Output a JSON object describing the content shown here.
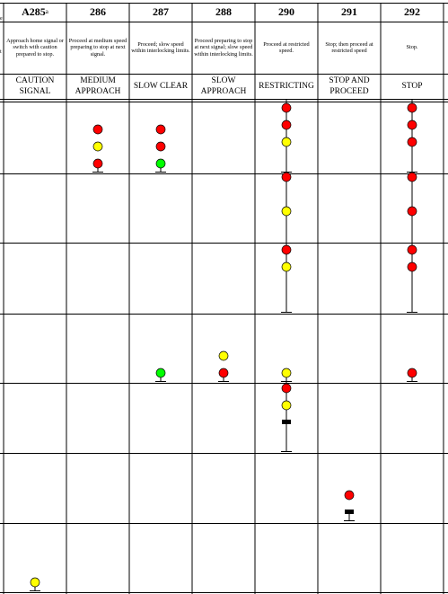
{
  "edge_fragments": [
    "e",
    "t"
  ],
  "header": {
    "rule_sup": "a",
    "columns": [
      {
        "rule": "A285",
        "indication": "Approach home signal or switch with caution prepared to stop.",
        "name": "CAUTION SIGNAL"
      },
      {
        "rule": "286",
        "indication": "Proceed at medium speed preparing to stop at next signal.",
        "name": "MEDIUM APPROACH"
      },
      {
        "rule": "287",
        "indication": "Proceed; slow speed within interlocking limits.",
        "name": "SLOW CLEAR"
      },
      {
        "rule": "288",
        "indication": "Proceed preparing to stop at next signal; slow speed within interlocking limits.",
        "name": "SLOW APPROACH"
      },
      {
        "rule": "290",
        "indication": "Proceed at restricted speed.",
        "name": "RESTRICTING"
      },
      {
        "rule": "291",
        "indication": "Stop; then proceed at restricted speed",
        "name": "STOP AND PROCEED"
      },
      {
        "rule": "292",
        "indication": "Stop.",
        "name": "STOP"
      }
    ]
  },
  "colors": {
    "red": "#ff0000",
    "yellow": "#ffff00",
    "green": "#00ff00",
    "plate": "#000000",
    "line": "#000000"
  },
  "aspects": [
    {
      "col": 1,
      "row": 0,
      "lamps": [
        "red",
        "yellow",
        "red"
      ],
      "stem": "bottom"
    },
    {
      "col": 2,
      "row": 0,
      "lamps": [
        "red",
        "red",
        "green"
      ],
      "stem": "bottom"
    },
    {
      "col": 4,
      "row": 0,
      "lamps": [
        "red",
        "red",
        "yellow"
      ],
      "stem": "full"
    },
    {
      "col": 6,
      "row": 0,
      "lamps": [
        "red",
        "red",
        "red"
      ],
      "stem": "full"
    },
    {
      "col": 4,
      "row": 1,
      "lamps": [
        "red",
        "gap",
        "yellow"
      ],
      "stem": "full"
    },
    {
      "col": 6,
      "row": 1,
      "lamps": [
        "red",
        "gap",
        "red"
      ],
      "stem": "full"
    },
    {
      "col": 4,
      "row": 2,
      "lamps": [
        "red",
        "yellow"
      ],
      "stem": "full"
    },
    {
      "col": 6,
      "row": 2,
      "lamps": [
        "red",
        "red"
      ],
      "stem": "full"
    },
    {
      "col": 2,
      "row": 3,
      "lamps": [
        "green"
      ],
      "stem": "bottom"
    },
    {
      "col": 3,
      "row": 3,
      "lamps": [
        "yellow",
        "red"
      ],
      "stem": "bottom"
    },
    {
      "col": 4,
      "row": 3,
      "lamps": [
        "yellow"
      ],
      "stem": "bottom"
    },
    {
      "col": 6,
      "row": 3,
      "lamps": [
        "red"
      ],
      "stem": "bottom"
    },
    {
      "col": 4,
      "row": 4,
      "lamps": [
        "red",
        "yellow",
        "plate"
      ],
      "stem": "full"
    },
    {
      "col": 5,
      "row": 5,
      "lamps": [
        "red",
        "plate"
      ],
      "stem": "bottom"
    },
    {
      "col": 0,
      "row": 6,
      "lamps": [
        "yellow"
      ],
      "stem": "bottom"
    }
  ]
}
